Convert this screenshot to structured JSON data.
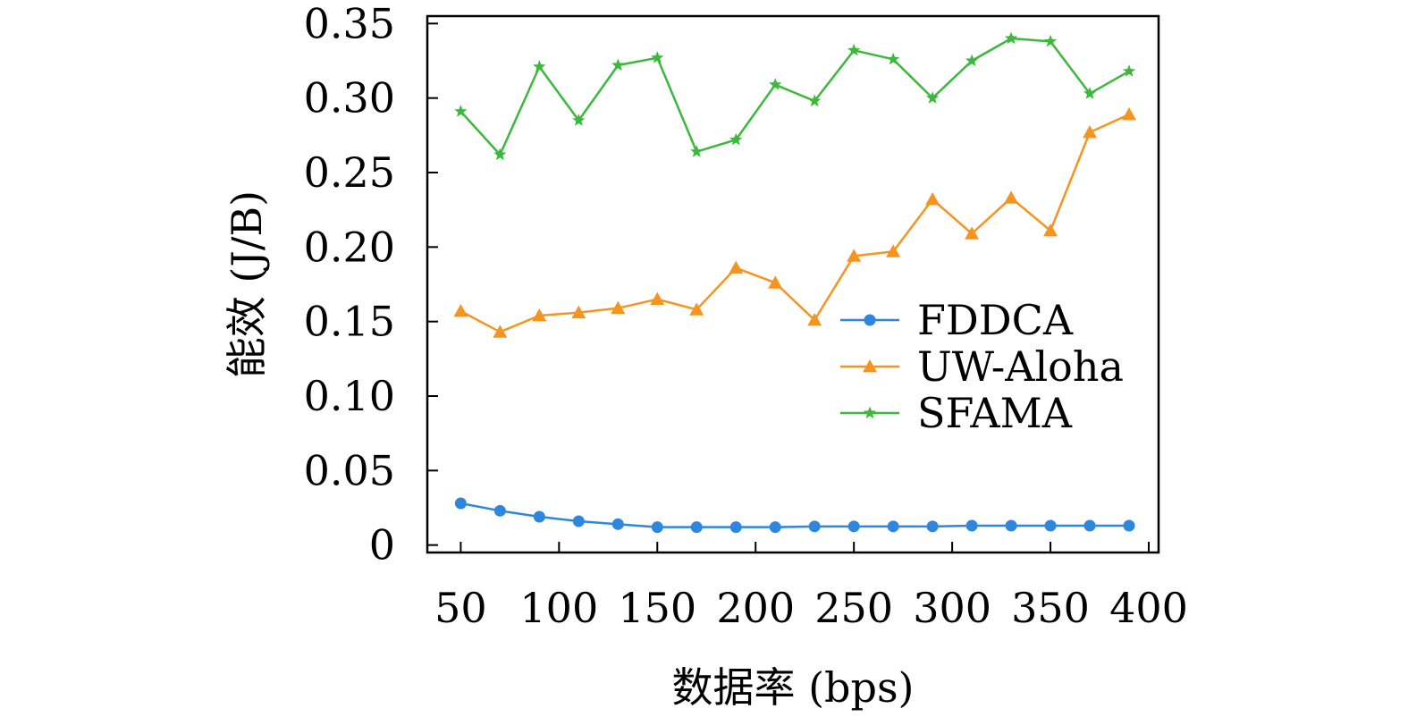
{
  "chart_data": {
    "type": "line",
    "title": "",
    "xlabel": "数据率 (bps)",
    "ylabel": "能效 (J/B)",
    "xlim": [
      33,
      405
    ],
    "ylim": [
      -0.005,
      0.355
    ],
    "xticks": [
      50,
      100,
      150,
      200,
      250,
      300,
      350,
      400
    ],
    "xtick_labels": [
      "50",
      "100",
      "150",
      "200",
      "250",
      "300",
      "350",
      "400"
    ],
    "yticks": [
      0,
      0.05,
      0.1,
      0.15,
      0.2,
      0.25,
      0.3,
      0.35
    ],
    "ytick_labels": [
      "0",
      "0.05",
      "0.10",
      "0.15",
      "0.20",
      "0.25",
      "0.30",
      "0.35"
    ],
    "grid": false,
    "legend_position": "center-right",
    "x": [
      50,
      70,
      90,
      110,
      130,
      150,
      170,
      190,
      210,
      230,
      250,
      270,
      290,
      310,
      330,
      350,
      370,
      390
    ],
    "series": [
      {
        "name": "FDDCA",
        "color": "#2e86de",
        "marker": "circle",
        "values": [
          0.028,
          0.023,
          0.019,
          0.016,
          0.014,
          0.012,
          0.012,
          0.012,
          0.012,
          0.0125,
          0.0125,
          0.0125,
          0.0125,
          0.013,
          0.013,
          0.013,
          0.013,
          0.013
        ]
      },
      {
        "name": "UW-Aloha",
        "color": "#f5951f",
        "marker": "triangle",
        "values": [
          0.157,
          0.143,
          0.154,
          0.156,
          0.159,
          0.165,
          0.158,
          0.186,
          0.176,
          0.151,
          0.194,
          0.197,
          0.232,
          0.209,
          0.233,
          0.211,
          0.277,
          0.289
        ]
      },
      {
        "name": "SFAMA",
        "color": "#3cb83c",
        "marker": "star",
        "values": [
          0.291,
          0.262,
          0.321,
          0.285,
          0.322,
          0.327,
          0.264,
          0.272,
          0.309,
          0.298,
          0.332,
          0.326,
          0.3,
          0.325,
          0.34,
          0.338,
          0.303,
          0.318
        ]
      }
    ]
  }
}
